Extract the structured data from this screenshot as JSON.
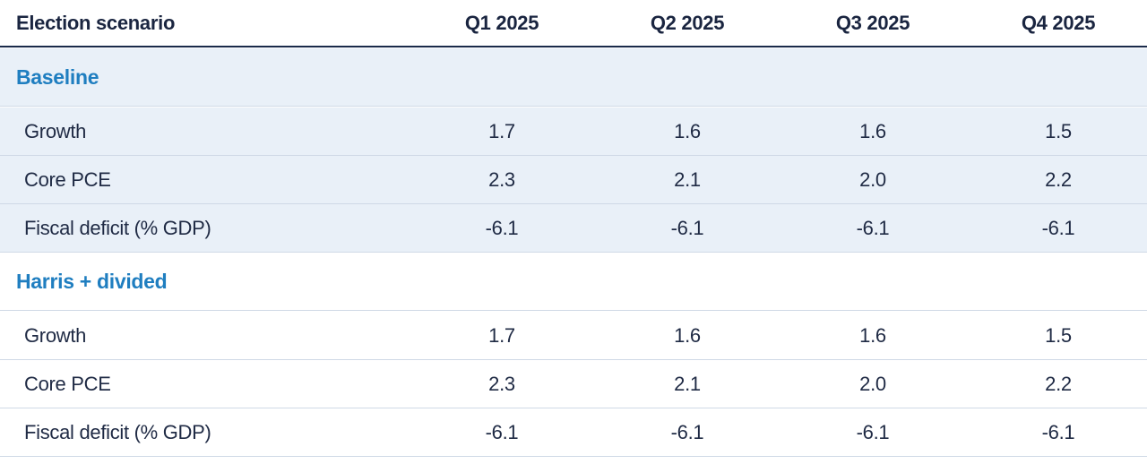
{
  "chart_data": {
    "type": "table",
    "columns": [
      "Election scenario",
      "Q1 2025",
      "Q2 2025",
      "Q3 2025",
      "Q4 2025"
    ],
    "sections": [
      {
        "name": "Baseline",
        "rows": [
          {
            "label": "Growth",
            "values": [
              "1.7",
              "1.6",
              "1.6",
              "1.5"
            ]
          },
          {
            "label": "Core PCE",
            "values": [
              "2.3",
              "2.1",
              "2.0",
              "2.2"
            ]
          },
          {
            "label": "Fiscal deficit (% GDP)",
            "values": [
              "-6.1",
              "-6.1",
              "-6.1",
              "-6.1"
            ]
          }
        ]
      },
      {
        "name": "Harris + divided",
        "rows": [
          {
            "label": "Growth",
            "values": [
              "1.7",
              "1.6",
              "1.6",
              "1.5"
            ]
          },
          {
            "label": "Core PCE",
            "values": [
              "2.3",
              "2.1",
              "2.0",
              "2.2"
            ]
          },
          {
            "label": "Fiscal deficit (% GDP)",
            "values": [
              "-6.1",
              "-6.1",
              "-6.1",
              "-6.1"
            ]
          }
        ]
      }
    ]
  },
  "colors": {
    "header_text": "#1a2540",
    "section_title": "#1f7ec0",
    "first_section_background": "#e9f0f8",
    "body_text": "#1f2a44"
  }
}
